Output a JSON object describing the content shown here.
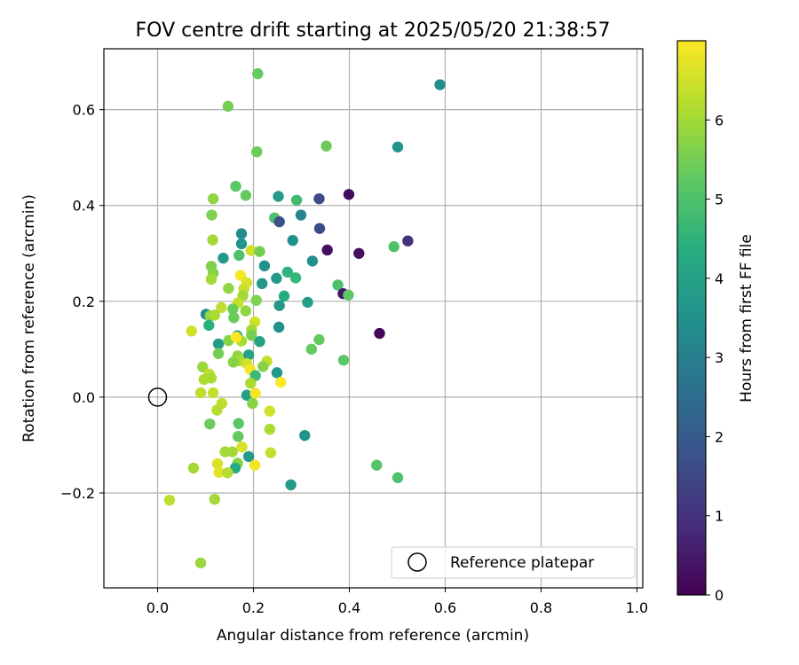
{
  "chart_data": {
    "type": "scatter",
    "title": "FOV centre drift starting at 2025/05/20 21:38:57",
    "xlabel": "Angular distance from reference (arcmin)",
    "ylabel": "Rotation from reference (arcmin)",
    "xlim": [
      -0.112,
      1.012
    ],
    "ylim": [
      -0.398,
      0.727
    ],
    "xticks": [
      0.0,
      0.2,
      0.4,
      0.6,
      0.8,
      1.0
    ],
    "xtick_labels": [
      "0.0",
      "0.2",
      "0.4",
      "0.6",
      "0.8",
      "1.0"
    ],
    "yticks": [
      -0.2,
      0.0,
      0.2,
      0.4,
      0.6
    ],
    "ytick_labels": [
      "−0.2",
      "0.0",
      "0.2",
      "0.4",
      "0.6"
    ],
    "grid": true,
    "legend": {
      "placement": "lower right",
      "entries": [
        "Reference platepar"
      ]
    },
    "reference_point": {
      "label": "Reference platepar",
      "x": 0.0,
      "y": 0.0
    },
    "colorbar": {
      "label": "Hours from first FF file",
      "range": [
        0,
        7
      ],
      "ticks": [
        "0",
        "1",
        "2",
        "3",
        "4",
        "5",
        "6"
      ],
      "colormap": "viridis"
    },
    "points": [
      [
        0.209,
        0.675,
        5.3
      ],
      [
        0.147,
        0.607,
        5.5
      ],
      [
        0.589,
        0.652,
        3.4
      ],
      [
        0.207,
        0.512,
        5.4
      ],
      [
        0.352,
        0.524,
        5.4
      ],
      [
        0.501,
        0.522,
        3.6
      ],
      [
        0.399,
        0.423,
        0.2
      ],
      [
        0.337,
        0.414,
        1.6
      ],
      [
        0.163,
        0.44,
        5.2
      ],
      [
        0.184,
        0.421,
        5.3
      ],
      [
        0.116,
        0.414,
        5.8
      ],
      [
        0.252,
        0.419,
        3.8
      ],
      [
        0.29,
        0.411,
        4.8
      ],
      [
        0.175,
        0.341,
        3.4
      ],
      [
        0.299,
        0.38,
        3.2
      ],
      [
        0.338,
        0.352,
        1.6
      ],
      [
        0.244,
        0.374,
        5.0
      ],
      [
        0.254,
        0.366,
        1.7
      ],
      [
        0.113,
        0.38,
        5.6
      ],
      [
        0.175,
        0.32,
        3.6
      ],
      [
        0.282,
        0.327,
        3.5
      ],
      [
        0.522,
        0.326,
        1.0
      ],
      [
        0.115,
        0.328,
        6.0
      ],
      [
        0.354,
        0.307,
        0.3
      ],
      [
        0.42,
        0.3,
        0.3
      ],
      [
        0.493,
        0.314,
        5.0
      ],
      [
        0.17,
        0.296,
        5.0
      ],
      [
        0.195,
        0.306,
        6.5
      ],
      [
        0.213,
        0.304,
        5.5
      ],
      [
        0.137,
        0.29,
        3.7
      ],
      [
        0.223,
        0.274,
        3.5
      ],
      [
        0.112,
        0.273,
        5.6
      ],
      [
        0.116,
        0.259,
        5.7
      ],
      [
        0.112,
        0.246,
        6.0
      ],
      [
        0.173,
        0.254,
        6.9
      ],
      [
        0.248,
        0.248,
        3.8
      ],
      [
        0.218,
        0.237,
        3.7
      ],
      [
        0.271,
        0.261,
        4.5
      ],
      [
        0.288,
        0.249,
        4.6
      ],
      [
        0.323,
        0.284,
        3.5
      ],
      [
        0.376,
        0.234,
        5.0
      ],
      [
        0.186,
        0.239,
        6.6
      ],
      [
        0.148,
        0.227,
        5.8
      ],
      [
        0.18,
        0.226,
        6.4
      ],
      [
        0.178,
        0.212,
        6.0
      ],
      [
        0.264,
        0.211,
        4.3
      ],
      [
        0.387,
        0.216,
        0.4
      ],
      [
        0.398,
        0.213,
        5.2
      ],
      [
        0.313,
        0.198,
        3.9
      ],
      [
        0.254,
        0.191,
        3.7
      ],
      [
        0.206,
        0.202,
        5.6
      ],
      [
        0.168,
        0.197,
        6.4
      ],
      [
        0.133,
        0.187,
        6.3
      ],
      [
        0.157,
        0.184,
        5.4
      ],
      [
        0.101,
        0.173,
        3.3
      ],
      [
        0.11,
        0.17,
        5.8
      ],
      [
        0.119,
        0.171,
        6.1
      ],
      [
        0.184,
        0.18,
        5.8
      ],
      [
        0.159,
        0.166,
        5.4
      ],
      [
        0.107,
        0.15,
        4.4
      ],
      [
        0.203,
        0.157,
        6.5
      ],
      [
        0.253,
        0.146,
        3.5
      ],
      [
        0.196,
        0.14,
        6.0
      ],
      [
        0.071,
        0.138,
        6.5
      ],
      [
        0.127,
        0.111,
        3.8
      ],
      [
        0.148,
        0.118,
        5.7
      ],
      [
        0.166,
        0.128,
        3.9
      ],
      [
        0.196,
        0.129,
        5.5
      ],
      [
        0.175,
        0.117,
        6.1
      ],
      [
        0.213,
        0.116,
        4.0
      ],
      [
        0.164,
        0.125,
        7.0
      ],
      [
        0.337,
        0.12,
        5.3
      ],
      [
        0.321,
        0.1,
        5.3
      ],
      [
        0.463,
        0.133,
        0.1
      ],
      [
        0.127,
        0.091,
        5.5
      ],
      [
        0.167,
        0.086,
        5.8
      ],
      [
        0.19,
        0.088,
        4.0
      ],
      [
        0.171,
        0.076,
        6.1
      ],
      [
        0.158,
        0.073,
        5.7
      ],
      [
        0.186,
        0.07,
        6.5
      ],
      [
        0.228,
        0.075,
        6.4
      ],
      [
        0.22,
        0.064,
        5.7
      ],
      [
        0.388,
        0.077,
        5.2
      ],
      [
        0.094,
        0.063,
        5.9
      ],
      [
        0.193,
        0.058,
        6.9
      ],
      [
        0.249,
        0.051,
        3.7
      ],
      [
        0.204,
        0.045,
        4.7
      ],
      [
        0.108,
        0.048,
        6.3
      ],
      [
        0.097,
        0.037,
        6.1
      ],
      [
        0.112,
        0.04,
        6.1
      ],
      [
        0.257,
        0.031,
        7.0
      ],
      [
        0.194,
        0.029,
        6.1
      ],
      [
        0.116,
        0.009,
        6.4
      ],
      [
        0.09,
        0.009,
        6.3
      ],
      [
        0.186,
        0.004,
        4.0
      ],
      [
        0.204,
        0.008,
        6.9
      ],
      [
        0.198,
        -0.013,
        5.7
      ],
      [
        0.134,
        -0.013,
        6.3
      ],
      [
        0.124,
        -0.027,
        6.2
      ],
      [
        0.234,
        -0.029,
        6.5
      ],
      [
        0.109,
        -0.056,
        5.4
      ],
      [
        0.169,
        -0.055,
        5.2
      ],
      [
        0.234,
        -0.067,
        6.1
      ],
      [
        0.307,
        -0.08,
        3.6
      ],
      [
        0.168,
        -0.082,
        5.3
      ],
      [
        0.176,
        -0.104,
        6.6
      ],
      [
        0.141,
        -0.114,
        6.0
      ],
      [
        0.156,
        -0.114,
        6.0
      ],
      [
        0.236,
        -0.116,
        6.4
      ],
      [
        0.19,
        -0.124,
        3.8
      ],
      [
        0.457,
        -0.142,
        5.1
      ],
      [
        0.167,
        -0.138,
        5.7
      ],
      [
        0.125,
        -0.139,
        6.6
      ],
      [
        0.203,
        -0.142,
        6.9
      ],
      [
        0.075,
        -0.148,
        6.0
      ],
      [
        0.162,
        -0.148,
        4.3
      ],
      [
        0.128,
        -0.157,
        6.7
      ],
      [
        0.146,
        -0.158,
        6.2
      ],
      [
        0.501,
        -0.168,
        5.0
      ],
      [
        0.278,
        -0.183,
        3.8
      ],
      [
        0.025,
        -0.215,
        6.3
      ],
      [
        0.119,
        -0.213,
        6.0
      ],
      [
        0.09,
        -0.346,
        5.9
      ]
    ]
  }
}
